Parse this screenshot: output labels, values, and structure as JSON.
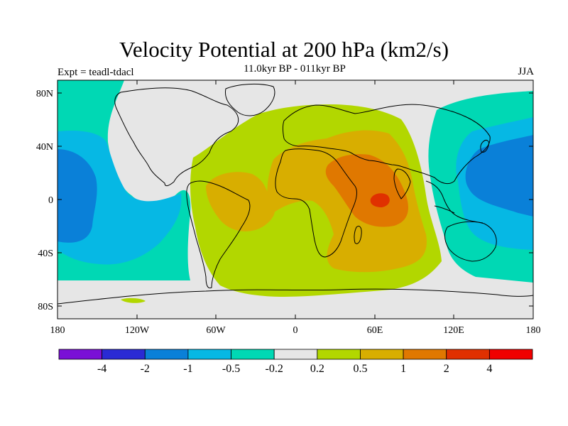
{
  "title": "Velocity Potential at 200 hPa (km2/s)",
  "subtitle": "11.0kyr BP - 011kyr BP",
  "experiment": "Expt = teadl-tdacl",
  "season": "JJA",
  "axes": {
    "lat_ticks": [
      "80N",
      "40N",
      "0",
      "40S",
      "80S"
    ],
    "lon_ticks": [
      "180",
      "120W",
      "60W",
      "0",
      "60E",
      "120E",
      "180"
    ]
  },
  "colorbar": {
    "colors": [
      "#7a10d6",
      "#2a2ad4",
      "#0a80d8",
      "#06b8e4",
      "#00d8b4",
      "#e6e6e6",
      "#b2d700",
      "#d8ae00",
      "#e07800",
      "#e03000",
      "#f00000"
    ],
    "labels": [
      "-4",
      "-2",
      "-1",
      "-0.5",
      "-0.2",
      "0.2",
      "0.5",
      "1",
      "2",
      "4"
    ]
  },
  "chart_data": {
    "type": "heatmap",
    "title": "Velocity Potential at 200 hPa (km2/s)",
    "subtitle": "11.0kyr BP - 011kyr BP",
    "projection": "cylindrical equidistant",
    "xlim": [
      -180,
      180
    ],
    "ylim": [
      -90,
      90
    ],
    "levels": [
      -4,
      -2,
      -1,
      -0.5,
      -0.2,
      0.2,
      0.5,
      1,
      2,
      4
    ],
    "features": [
      {
        "region": "central Pacific",
        "sign": "negative",
        "range": "-1 to -0.5"
      },
      {
        "region": "western Pacific / Maritime Continent",
        "sign": "negative",
        "range": "-1 to -0.5"
      },
      {
        "region": "Atlantic / Africa / Indian Ocean",
        "sign": "positive",
        "range": "0.2 to 1"
      },
      {
        "region": "Arabian Sea / NE Africa",
        "sign": "positive",
        "range": "1 to 4"
      }
    ]
  }
}
